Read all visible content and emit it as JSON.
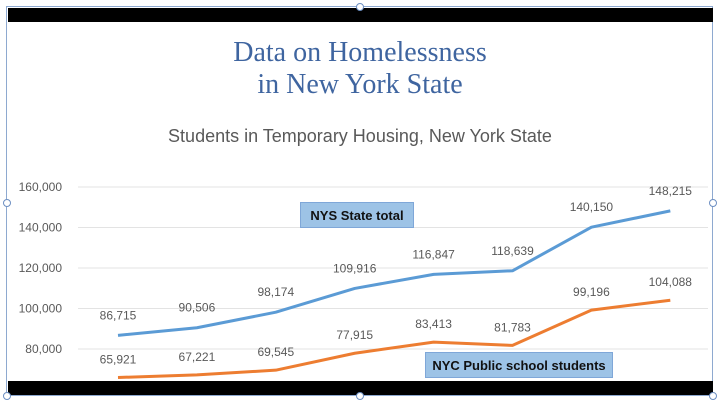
{
  "slide": {
    "title_line1": "Data on Homelessness",
    "title_line2": "in New York State"
  },
  "chart_data": {
    "type": "line",
    "title": "Students in Temporary Housing, New York State",
    "xlabel": "",
    "ylabel": "",
    "ylim": [
      60000,
      160000
    ],
    "yticks": [
      80000,
      100000,
      120000,
      140000,
      160000
    ],
    "ytick_labels": [
      "80,000",
      "100,000",
      "120,000",
      "140,000",
      "160,000"
    ],
    "grid": true,
    "series": [
      {
        "name": "NYS State total",
        "color": "#5b9bd5",
        "values": [
          86715,
          90506,
          98174,
          109916,
          116847,
          118639,
          140150,
          148215
        ],
        "labels": [
          "86,715",
          "90,506",
          "98,174",
          "109,916",
          "116,847",
          "118,639",
          "140,150",
          "148,215"
        ]
      },
      {
        "name": "NYC Public school students",
        "color": "#ed7d31",
        "values": [
          65921,
          67221,
          69545,
          77915,
          83413,
          81783,
          99196,
          104088
        ],
        "labels": [
          "65,921",
          "67,221",
          "69,545",
          "77,915",
          "83,413",
          "81,783",
          "99,196",
          "104,088"
        ]
      }
    ]
  }
}
